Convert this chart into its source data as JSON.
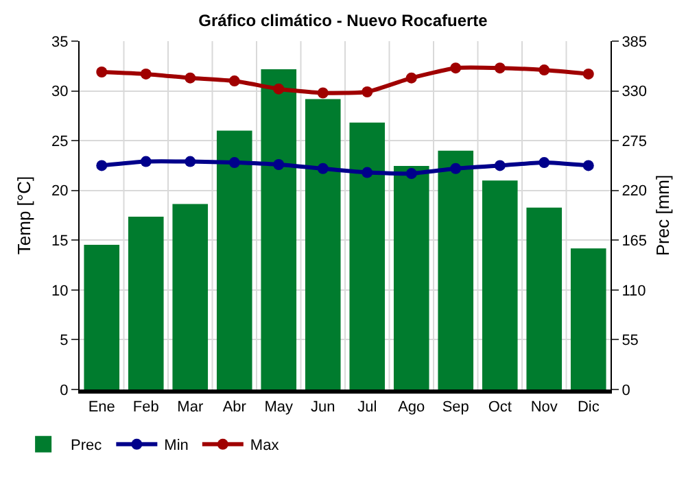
{
  "chart_data": {
    "type": "bar",
    "title": "Gráfico climático - Nuevo Rocafuerte",
    "ylabel": "Temp [°C]",
    "y2label": "Prec [mm]",
    "categories": [
      "Ene",
      "Feb",
      "Mar",
      "Abr",
      "May",
      "Jun",
      "Jul",
      "Ago",
      "Sep",
      "Oct",
      "Nov",
      "Dic"
    ],
    "series": [
      {
        "name": "Prec",
        "axis": "y2",
        "color": "#007c2e",
        "values": [
          160,
          191,
          205,
          286,
          354,
          321,
          295,
          247,
          264,
          231,
          201,
          156
        ]
      },
      {
        "name": "Min",
        "type": "line",
        "color": "#00008b",
        "values": [
          22.5,
          22.9,
          22.9,
          22.8,
          22.6,
          22.2,
          21.8,
          21.7,
          22.2,
          22.5,
          22.8,
          22.5
        ]
      },
      {
        "name": "Max",
        "type": "line",
        "color": "#a00000",
        "values": [
          31.9,
          31.7,
          31.3,
          31.0,
          30.2,
          29.8,
          29.9,
          31.3,
          32.3,
          32.3,
          32.1,
          31.7
        ]
      }
    ],
    "ylim": [
      0,
      35
    ],
    "yticks": [
      0,
      5,
      10,
      15,
      20,
      25,
      30,
      35
    ],
    "y2lim": [
      0,
      385
    ],
    "y2ticks": [
      0,
      55,
      110,
      165,
      220,
      275,
      330,
      385
    ],
    "grid": true,
    "legend": "bottom left",
    "marker": "circle"
  }
}
